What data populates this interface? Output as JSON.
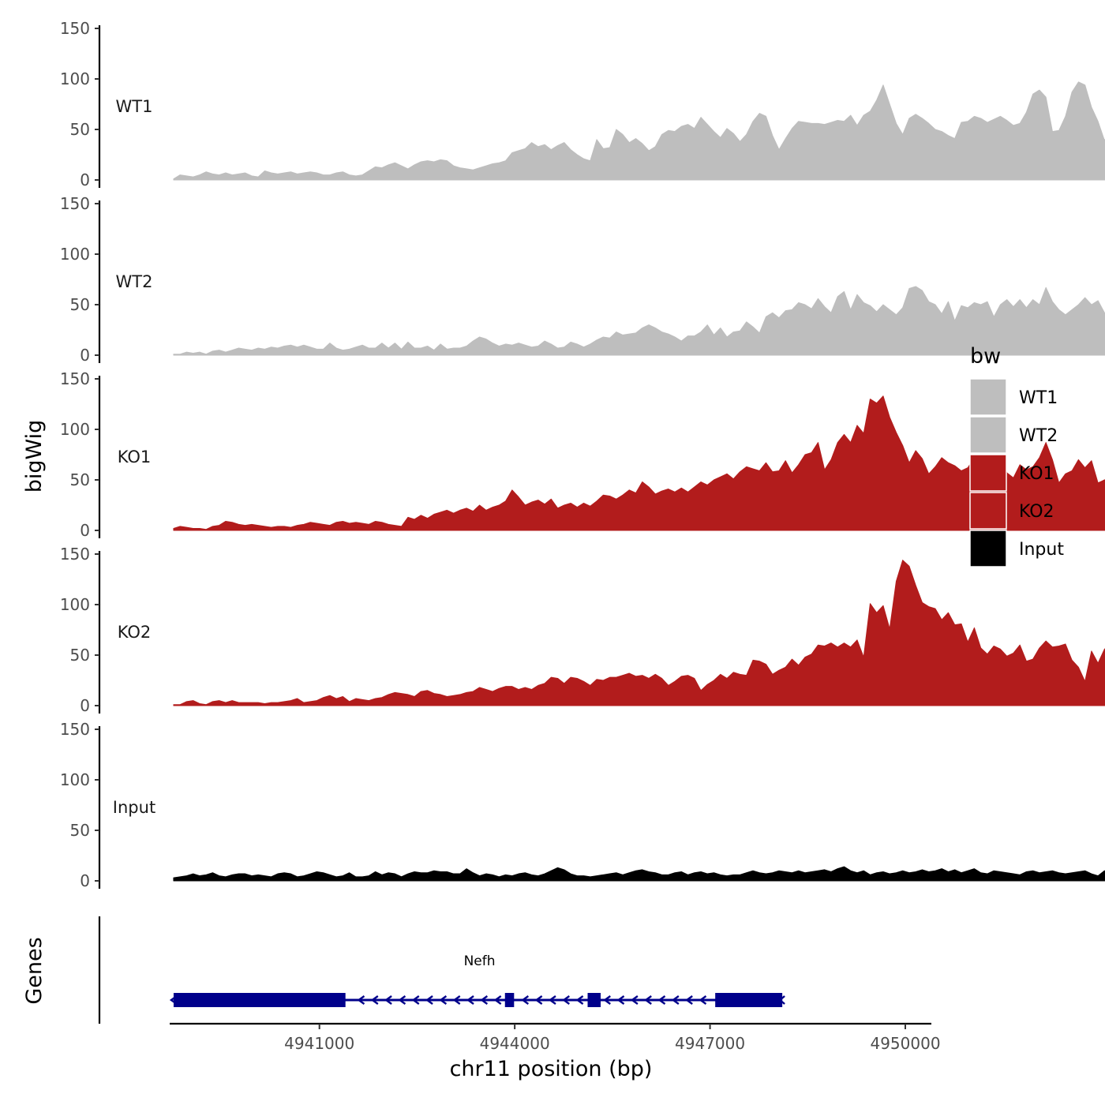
{
  "chart_data": {
    "type": "area",
    "xlabel": "chr11 position (bp)",
    "ylabel": "bigWig",
    "genes_label": "Genes",
    "xlim": [
      4938700,
      4950400
    ],
    "x_ticks": [
      {
        "value": 4941000,
        "label": "4941000"
      },
      {
        "value": 4944000,
        "label": "4944000"
      },
      {
        "value": 4947000,
        "label": "4947000"
      },
      {
        "value": 4950000,
        "label": "4950000"
      }
    ],
    "ylim": [
      0,
      150
    ],
    "y_ticks": [
      {
        "value": 0,
        "label": "0"
      },
      {
        "value": 50,
        "label": "50"
      },
      {
        "value": 100,
        "label": "100"
      },
      {
        "value": 150,
        "label": "150"
      }
    ],
    "x_start": 4938760,
    "x_step": 100,
    "series": [
      {
        "name": "WT1",
        "color": "#bebebe",
        "values": [
          1,
          5,
          4,
          3,
          5,
          8,
          6,
          5,
          7,
          5,
          6,
          7,
          4,
          3,
          9,
          7,
          6,
          7,
          8,
          6,
          7,
          8,
          7,
          5,
          5,
          7,
          8,
          5,
          4,
          5,
          9,
          13,
          12,
          15,
          17,
          14,
          11,
          15,
          18,
          19,
          18,
          20,
          19,
          14,
          12,
          11,
          10,
          12,
          14,
          16,
          17,
          19,
          27,
          29,
          31,
          37,
          33,
          35,
          30,
          34,
          37,
          30,
          25,
          21,
          19,
          40,
          31,
          32,
          50,
          45,
          37,
          41,
          36,
          29,
          33,
          45,
          49,
          48,
          53,
          55,
          51,
          62,
          55,
          48,
          42,
          51,
          46,
          38,
          45,
          58,
          66,
          63,
          44,
          30,
          41,
          51,
          58,
          57,
          56,
          56,
          55,
          57,
          59,
          58,
          64,
          54,
          64,
          68,
          79,
          94,
          75,
          56,
          45,
          61,
          65,
          61,
          56,
          50,
          48,
          44,
          41,
          57,
          58,
          63,
          61,
          57,
          60,
          63,
          59,
          54,
          56,
          67,
          85,
          89,
          82,
          48,
          49,
          63,
          87,
          97,
          94,
          72,
          58,
          39,
          52,
          50,
          57,
          54,
          50,
          46,
          43,
          53,
          56,
          51,
          47,
          52,
          32,
          51,
          58,
          53,
          55,
          57,
          51,
          59,
          52
        ]
      },
      {
        "name": "WT2",
        "color": "#bebebe",
        "values": [
          1,
          1,
          3,
          2,
          3,
          1,
          4,
          5,
          3,
          5,
          7,
          6,
          5,
          7,
          6,
          8,
          7,
          9,
          10,
          8,
          10,
          8,
          6,
          6,
          12,
          7,
          5,
          6,
          8,
          10,
          7,
          7,
          12,
          7,
          12,
          6,
          13,
          7,
          7,
          9,
          5,
          11,
          6,
          7,
          7,
          9,
          14,
          18,
          16,
          12,
          9,
          11,
          10,
          12,
          10,
          8,
          9,
          14,
          11,
          7,
          8,
          13,
          11,
          8,
          11,
          15,
          18,
          17,
          23,
          20,
          21,
          22,
          27,
          30,
          27,
          23,
          21,
          18,
          14,
          19,
          19,
          23,
          30,
          20,
          27,
          18,
          23,
          24,
          33,
          28,
          22,
          38,
          42,
          37,
          44,
          45,
          52,
          50,
          46,
          56,
          48,
          42,
          58,
          63,
          45,
          60,
          52,
          49,
          43,
          50,
          45,
          40,
          47,
          66,
          68,
          64,
          53,
          50,
          41,
          53,
          34,
          49,
          47,
          52,
          50,
          53,
          38,
          50,
          55,
          48,
          55,
          47,
          55,
          50,
          67,
          53,
          45,
          40,
          45,
          50,
          57,
          50,
          54,
          42,
          33,
          38,
          40,
          54,
          50,
          45,
          25,
          36,
          24,
          32,
          38,
          44,
          48,
          37,
          35,
          40,
          37,
          39,
          54,
          58,
          43,
          38,
          32
        ]
      },
      {
        "name": "KO1",
        "color": "#b21c1c",
        "values": [
          2,
          4,
          3,
          2,
          2,
          1,
          4,
          5,
          9,
          8,
          6,
          5,
          6,
          5,
          4,
          3,
          4,
          4,
          3,
          5,
          6,
          8,
          7,
          6,
          5,
          8,
          9,
          7,
          8,
          7,
          6,
          9,
          8,
          6,
          5,
          4,
          13,
          11,
          15,
          12,
          16,
          18,
          20,
          17,
          20,
          22,
          19,
          25,
          20,
          23,
          25,
          29,
          40,
          33,
          25,
          28,
          30,
          26,
          31,
          22,
          25,
          27,
          23,
          27,
          24,
          29,
          35,
          34,
          31,
          35,
          40,
          37,
          48,
          43,
          36,
          39,
          41,
          38,
          42,
          38,
          43,
          48,
          45,
          50,
          53,
          56,
          51,
          58,
          63,
          61,
          59,
          67,
          58,
          59,
          69,
          57,
          65,
          75,
          77,
          87,
          60,
          70,
          87,
          95,
          87,
          104,
          96,
          130,
          126,
          133,
          112,
          97,
          84,
          67,
          79,
          71,
          56,
          63,
          72,
          67,
          64,
          59,
          62,
          72,
          61,
          62,
          67,
          74,
          57,
          52,
          65,
          60,
          63,
          72,
          87,
          70,
          47,
          56,
          59,
          70,
          62,
          69,
          47,
          50,
          52,
          60,
          61,
          63,
          53,
          64,
          48,
          60,
          77,
          76,
          75,
          75,
          73,
          60,
          58,
          57,
          53,
          50,
          45,
          55,
          57,
          63
        ]
      },
      {
        "name": "KO2",
        "color": "#b21c1c",
        "values": [
          1,
          1,
          4,
          5,
          2,
          1,
          4,
          5,
          3,
          5,
          3,
          3,
          3,
          3,
          2,
          3,
          3,
          4,
          5,
          7,
          3,
          4,
          5,
          8,
          10,
          7,
          9,
          4,
          7,
          6,
          5,
          7,
          8,
          11,
          13,
          12,
          11,
          9,
          14,
          15,
          12,
          11,
          9,
          10,
          11,
          13,
          14,
          18,
          16,
          14,
          17,
          19,
          19,
          16,
          18,
          16,
          20,
          22,
          28,
          27,
          22,
          28,
          27,
          24,
          20,
          26,
          25,
          28,
          28,
          30,
          32,
          29,
          30,
          27,
          31,
          27,
          20,
          24,
          29,
          30,
          27,
          15,
          21,
          25,
          31,
          27,
          33,
          31,
          30,
          45,
          44,
          41,
          31,
          35,
          38,
          46,
          40,
          48,
          51,
          60,
          59,
          62,
          58,
          62,
          58,
          65,
          48,
          101,
          92,
          99,
          76,
          123,
          144,
          138,
          119,
          102,
          98,
          96,
          85,
          92,
          80,
          81,
          63,
          77,
          57,
          51,
          59,
          56,
          49,
          52,
          60,
          44,
          46,
          57,
          64,
          58,
          59,
          61,
          45,
          38,
          24,
          54,
          42,
          56,
          60,
          58,
          40,
          51,
          69,
          79,
          61,
          56,
          48,
          44,
          55,
          58,
          42,
          36,
          44,
          54,
          48,
          41,
          42,
          35,
          45,
          68,
          76,
          58,
          45,
          42,
          36
        ]
      },
      {
        "name": "Input",
        "color": "#000000",
        "values": [
          3,
          4,
          5,
          7,
          5,
          6,
          8,
          5,
          4,
          6,
          7,
          7,
          5,
          6,
          5,
          4,
          7,
          8,
          7,
          4,
          5,
          7,
          9,
          8,
          6,
          4,
          5,
          8,
          4,
          4,
          5,
          9,
          6,
          8,
          7,
          4,
          7,
          9,
          8,
          8,
          10,
          9,
          9,
          7,
          7,
          12,
          8,
          5,
          7,
          6,
          4,
          6,
          5,
          7,
          8,
          6,
          5,
          7,
          10,
          13,
          11,
          7,
          5,
          5,
          4,
          5,
          6,
          7,
          8,
          6,
          8,
          10,
          11,
          9,
          8,
          6,
          6,
          8,
          9,
          6,
          8,
          9,
          7,
          8,
          6,
          5,
          6,
          6,
          8,
          10,
          8,
          7,
          8,
          10,
          9,
          8,
          10,
          8,
          9,
          10,
          11,
          9,
          12,
          14,
          10,
          8,
          10,
          6,
          8,
          9,
          7,
          8,
          10,
          8,
          9,
          11,
          9,
          10,
          12,
          9,
          11,
          8,
          10,
          12,
          8,
          7,
          10,
          9,
          8,
          7,
          6,
          9,
          10,
          8,
          9,
          10,
          8,
          7,
          8,
          9,
          10,
          7,
          5,
          10,
          7,
          6,
          7,
          8,
          6,
          5,
          9,
          7,
          7,
          6,
          7,
          9,
          10,
          5,
          8,
          9,
          10,
          5
        ]
      }
    ],
    "gene": {
      "name": "Nefh",
      "strand": "-",
      "color": "#00008b",
      "start": 4938760,
      "end": 4948110,
      "exons": [
        {
          "start": 4938760,
          "end": 4941400
        },
        {
          "start": 4943850,
          "end": 4943990
        },
        {
          "start": 4945120,
          "end": 4945320
        },
        {
          "start": 4947080,
          "end": 4948110
        }
      ]
    },
    "legend": {
      "title": "bw",
      "position": "right",
      "entries": [
        {
          "label": "WT1",
          "color": "#bebebe"
        },
        {
          "label": "WT2",
          "color": "#bebebe"
        },
        {
          "label": "KO1",
          "color": "#b21c1c"
        },
        {
          "label": "KO2",
          "color": "#b21c1c"
        },
        {
          "label": "Input",
          "color": "#000000"
        }
      ]
    },
    "grid": false
  }
}
